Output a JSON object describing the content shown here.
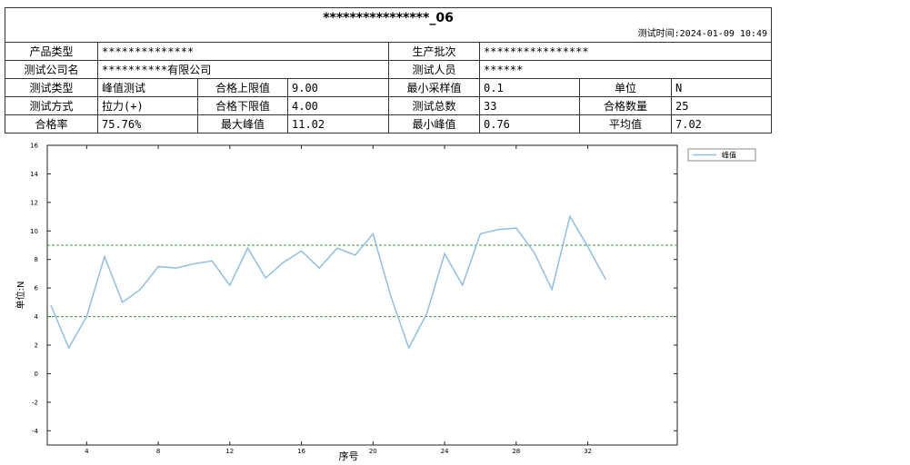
{
  "header": {
    "title": "****************_06",
    "test_time": "测试时间:2024-01-09 10:49"
  },
  "table": {
    "rows": [
      [
        "产品类型",
        "**************",
        "生产批次",
        "****************"
      ],
      [
        "测试公司名",
        "**********有限公司",
        "测试人员",
        "******"
      ],
      [
        "测试类型",
        "峰值测试",
        "合格上限值",
        "9.00",
        "最小采样值",
        "0.1",
        "单位",
        "N"
      ],
      [
        "测试方式",
        "拉力(+)",
        "合格下限值",
        "4.00",
        "测试总数",
        "33",
        "合格数量",
        "25"
      ],
      [
        "合格率",
        "75.76%",
        "最大峰值",
        "11.02",
        "最小峰值",
        "0.76",
        "平均值",
        "7.02"
      ]
    ]
  },
  "chart_data": {
    "type": "line",
    "x_label": "序号",
    "y_label": "单位:N",
    "x": [
      2,
      3,
      4,
      5,
      6,
      7,
      8,
      9,
      10,
      11,
      12,
      13,
      14,
      15,
      16,
      17,
      18,
      19,
      20,
      21,
      22,
      23,
      24,
      25,
      26,
      27,
      28,
      29,
      30,
      31,
      32,
      33
    ],
    "series": [
      {
        "name": "峰值",
        "color": "#8fbfe0",
        "values": [
          4.8,
          1.8,
          4.0,
          8.2,
          5.0,
          5.9,
          7.5,
          7.4,
          7.7,
          7.9,
          6.2,
          8.8,
          6.7,
          7.8,
          8.6,
          7.4,
          8.8,
          8.3,
          9.8,
          5.4,
          1.8,
          4.2,
          8.4,
          6.2,
          9.8,
          10.1,
          10.2,
          8.5,
          5.9,
          11.02,
          8.9,
          6.6
        ]
      }
    ],
    "reference_lines": [
      9,
      4
    ],
    "reference_color": "#3a9a3a",
    "xlim": [
      1.8,
      37
    ],
    "xticks": [
      4,
      8,
      12,
      16,
      20,
      24,
      28,
      32
    ],
    "ylim": [
      -5,
      16
    ],
    "yticks": [
      -4,
      -2,
      0,
      2,
      4,
      6,
      8,
      10,
      12,
      14,
      16
    ],
    "legend": "outside-top-right"
  }
}
